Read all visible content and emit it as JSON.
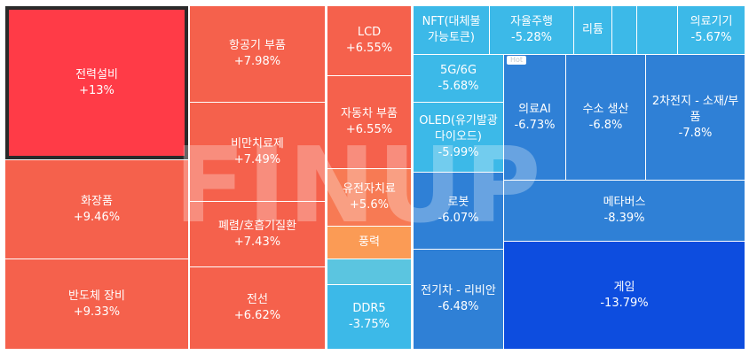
{
  "chart_data": {
    "type": "treemap",
    "tiles": [
      {
        "name": "전력설비",
        "value": "+13%",
        "color": "#ff3b47",
        "selected": true
      },
      {
        "name": "화장품",
        "value": "+9.46%",
        "color": "#f5614c"
      },
      {
        "name": "반도체 장비",
        "value": "+9.33%",
        "color": "#f5614c"
      },
      {
        "name": "항공기 부품",
        "value": "+7.98%",
        "color": "#f5614c"
      },
      {
        "name": "비만치료제",
        "value": "+7.49%",
        "color": "#f5614c"
      },
      {
        "name": "폐렴/호흡기질환",
        "value": "+7.43%",
        "color": "#f5614c"
      },
      {
        "name": "전선",
        "value": "+6.62%",
        "color": "#f5614c"
      },
      {
        "name": "LCD",
        "value": "+6.55%",
        "color": "#f5614c"
      },
      {
        "name": "자동차 부품",
        "value": "+6.55%",
        "color": "#f5614c"
      },
      {
        "name": "유전자치료",
        "value": "+5.6%",
        "color": "#f77a54"
      },
      {
        "name": "풍력",
        "value": "",
        "color": "#fb9b55"
      },
      {
        "name": "",
        "value": "",
        "color": "#5bc5e0"
      },
      {
        "name": "DDR5",
        "value": "-3.75%",
        "color": "#3cb9e8"
      },
      {
        "name": "NFT(대체불가능토큰)",
        "value": "",
        "color": "#3cb9e8"
      },
      {
        "name": "자율주행",
        "value": "-5.28%",
        "color": "#3cb9e8"
      },
      {
        "name": "리튬",
        "value": "",
        "color": "#3cb9e8"
      },
      {
        "name": "",
        "value": "",
        "color": "#3cb9e8"
      },
      {
        "name": "",
        "value": "",
        "color": "#3cb9e8"
      },
      {
        "name": "의료기기",
        "value": "-5.67%",
        "color": "#3cb9e8"
      },
      {
        "name": "5G/6G",
        "value": "-5.68%",
        "color": "#3cb9e8"
      },
      {
        "name": "OLED(유기발광다이오드)",
        "value": "-5.99%",
        "color": "#3cb9e8"
      },
      {
        "name": "의료AI",
        "value": "-6.73%",
        "color": "#2f80d6",
        "badge": "Hot"
      },
      {
        "name": "수소 생산",
        "value": "-6.8%",
        "color": "#2f80d6"
      },
      {
        "name": "2차전지 - 소재/부품",
        "value": "-7.8%",
        "color": "#2f80d6"
      },
      {
        "name": "로봇",
        "value": "-6.07%",
        "color": "#2f80d6"
      },
      {
        "name": "메타버스",
        "value": "-8.39%",
        "color": "#2f80d6"
      },
      {
        "name": "전기차 - 리비안",
        "value": "-6.48%",
        "color": "#2f80d6"
      },
      {
        "name": "게임",
        "value": "-13.79%",
        "color": "#0d4ddf"
      }
    ]
  },
  "watermark": "FINUP"
}
